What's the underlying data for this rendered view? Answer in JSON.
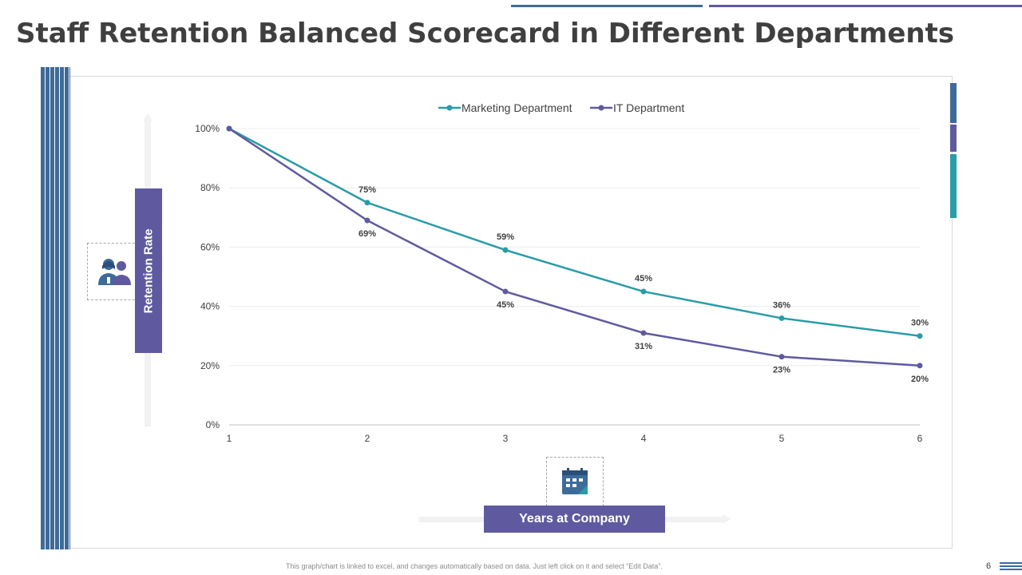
{
  "title": "Staff Retention Balanced Scorecard in Different Departments",
  "footnote": "This graph/chart is linked to excel, and changes automatically based on data. Just left click on it and select “Edit Data”.",
  "page_number": "6",
  "colors": {
    "marketing": "#2a9ca8",
    "it": "#5f5a9f",
    "stripe": "#3d6b9a",
    "label_box": "#5f5a9f"
  },
  "icons": {
    "people": "people-icon",
    "calendar": "calendar-icon"
  },
  "chart_data": {
    "type": "line",
    "title": "",
    "xlabel": "Years at Company",
    "ylabel": "Retention Rate",
    "x": [
      "1",
      "2",
      "3",
      "4",
      "5",
      "6"
    ],
    "yticks": [
      "0%",
      "20%",
      "40%",
      "60%",
      "80%",
      "100%"
    ],
    "ylim": [
      0,
      100
    ],
    "grid": true,
    "legend": "top-center",
    "series": [
      {
        "name": "Marketing Department",
        "values": [
          100,
          75,
          59,
          45,
          36,
          30
        ],
        "labels": [
          "",
          "75%",
          "59%",
          "45%",
          "36%",
          "30%"
        ]
      },
      {
        "name": "IT Department",
        "values": [
          100,
          69,
          45,
          31,
          23,
          20
        ],
        "labels": [
          "",
          "69%",
          "45%",
          "31%",
          "23%",
          "20%"
        ]
      }
    ]
  }
}
